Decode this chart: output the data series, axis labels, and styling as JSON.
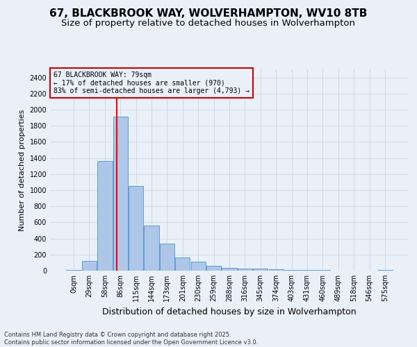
{
  "title1": "67, BLACKBROOK WAY, WOLVERHAMPTON, WV10 8TB",
  "title2": "Size of property relative to detached houses in Wolverhampton",
  "xlabel": "Distribution of detached houses by size in Wolverhampton",
  "ylabel": "Number of detached properties",
  "footer1": "Contains HM Land Registry data © Crown copyright and database right 2025.",
  "footer2": "Contains public sector information licensed under the Open Government Licence v3.0.",
  "categories": [
    "0sqm",
    "29sqm",
    "58sqm",
    "86sqm",
    "115sqm",
    "144sqm",
    "173sqm",
    "201sqm",
    "230sqm",
    "259sqm",
    "288sqm",
    "316sqm",
    "345sqm",
    "374sqm",
    "403sqm",
    "431sqm",
    "460sqm",
    "489sqm",
    "518sqm",
    "546sqm",
    "575sqm"
  ],
  "values": [
    10,
    125,
    1360,
    1910,
    1050,
    560,
    335,
    165,
    110,
    60,
    35,
    28,
    25,
    20,
    10,
    7,
    5,
    4,
    3,
    2,
    10
  ],
  "bar_color": "#aec6e8",
  "bar_edge_color": "#5a9fd4",
  "annotation_text": "67 BLACKBROOK WAY: 79sqm\n← 17% of detached houses are smaller (970)\n83% of semi-detached houses are larger (4,793) →",
  "annotation_box_color": "#cc0000",
  "ylim": [
    0,
    2500
  ],
  "grid_color": "#d0d8e8",
  "background_color": "#eaf0f8",
  "title_fontsize": 11,
  "subtitle_fontsize": 9.5,
  "tick_fontsize": 7,
  "ylabel_fontsize": 8,
  "xlabel_fontsize": 9,
  "footer_fontsize": 6,
  "annotation_fontsize": 7
}
